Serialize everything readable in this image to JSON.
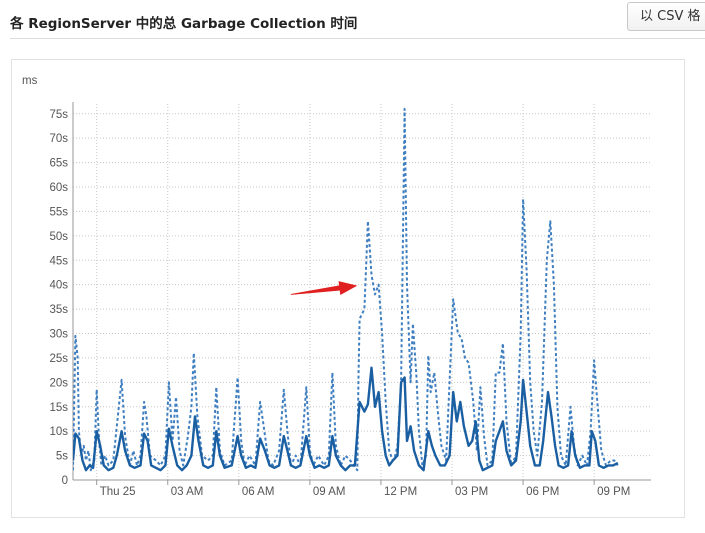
{
  "header": {
    "title": "各 RegionServer 中的总 Garbage Collection 时间",
    "csv_button": "以 CSV 格"
  },
  "chart_data": {
    "type": "line",
    "title": "各 RegionServer 中的总 Garbage Collection 时间",
    "ylabel": "ms",
    "y_unit_suffix": "s",
    "ylim": [
      0,
      77
    ],
    "yticks": [
      0,
      5,
      10,
      15,
      20,
      25,
      30,
      35,
      40,
      45,
      50,
      55,
      60,
      65,
      70,
      75
    ],
    "ytick_labels": [
      "0",
      "5s",
      "10s",
      "15s",
      "20s",
      "25s",
      "30s",
      "35s",
      "40s",
      "45s",
      "50s",
      "55s",
      "60s",
      "65s",
      "70s",
      "75s"
    ],
    "xlim": [
      -1.0,
      23.4
    ],
    "xtick_labels": [
      {
        "x": 0,
        "label": "Thu 25"
      },
      {
        "x": 3,
        "label": "03 AM"
      },
      {
        "x": 6,
        "label": "06 AM"
      },
      {
        "x": 9,
        "label": "09 AM"
      },
      {
        "x": 12,
        "label": "12 PM"
      },
      {
        "x": 15,
        "label": "03 PM"
      },
      {
        "x": 18,
        "label": "06 PM"
      },
      {
        "x": 21,
        "label": "09 PM"
      }
    ],
    "grid": true,
    "colors": {
      "line": "#1b5fa3",
      "dotted": "#3f7fc0",
      "grid": "#c7c7c7",
      "axis": "#999999",
      "arrow": "#e02020"
    },
    "series": [
      {
        "style": "dashed",
        "points": [
          [
            -1.0,
            2
          ],
          [
            -0.9,
            29.5
          ],
          [
            -0.8,
            25
          ],
          [
            -0.75,
            10
          ],
          [
            -0.65,
            5
          ],
          [
            -0.55,
            7
          ],
          [
            -0.45,
            4
          ],
          [
            -0.35,
            6
          ],
          [
            -0.25,
            2
          ],
          [
            -0.1,
            4
          ],
          [
            0.0,
            18.5
          ],
          [
            0.1,
            8
          ],
          [
            0.2,
            3
          ],
          [
            0.35,
            5
          ],
          [
            0.5,
            3
          ],
          [
            0.7,
            4
          ],
          [
            0.85,
            11
          ],
          [
            1.05,
            20.5
          ],
          [
            1.2,
            9
          ],
          [
            1.4,
            3
          ],
          [
            1.55,
            6
          ],
          [
            1.7,
            3
          ],
          [
            1.85,
            5
          ],
          [
            2.0,
            16
          ],
          [
            2.1,
            13
          ],
          [
            2.25,
            5
          ],
          [
            2.5,
            4
          ],
          [
            2.7,
            3
          ],
          [
            2.9,
            5
          ],
          [
            3.05,
            20
          ],
          [
            3.2,
            8
          ],
          [
            3.35,
            17
          ],
          [
            3.5,
            6
          ],
          [
            3.65,
            3
          ],
          [
            3.85,
            9
          ],
          [
            4.0,
            15
          ],
          [
            4.1,
            26
          ],
          [
            4.25,
            13
          ],
          [
            4.45,
            5
          ],
          [
            4.7,
            4
          ],
          [
            4.9,
            5
          ],
          [
            5.05,
            19
          ],
          [
            5.2,
            6
          ],
          [
            5.4,
            3
          ],
          [
            5.7,
            4
          ],
          [
            5.95,
            21
          ],
          [
            6.1,
            8
          ],
          [
            6.25,
            3
          ],
          [
            6.45,
            5
          ],
          [
            6.7,
            3
          ],
          [
            6.9,
            16
          ],
          [
            7.05,
            11
          ],
          [
            7.25,
            4
          ],
          [
            7.45,
            3
          ],
          [
            7.7,
            6
          ],
          [
            7.9,
            18.5
          ],
          [
            8.05,
            10
          ],
          [
            8.2,
            3
          ],
          [
            8.4,
            5
          ],
          [
            8.6,
            3
          ],
          [
            8.85,
            19
          ],
          [
            9.0,
            6
          ],
          [
            9.15,
            3
          ],
          [
            9.35,
            5
          ],
          [
            9.6,
            3
          ],
          [
            9.8,
            5
          ],
          [
            9.95,
            22
          ],
          [
            10.1,
            7
          ],
          [
            10.3,
            3
          ],
          [
            10.5,
            5
          ],
          [
            10.7,
            4
          ],
          [
            10.85,
            3
          ],
          [
            11.0,
            2
          ],
          [
            11.05,
            20
          ],
          [
            11.1,
            33
          ],
          [
            11.3,
            35
          ],
          [
            11.45,
            53
          ],
          [
            11.6,
            42
          ],
          [
            11.75,
            38
          ],
          [
            11.9,
            40
          ],
          [
            12.05,
            30
          ],
          [
            12.2,
            16
          ],
          [
            12.35,
            6
          ],
          [
            12.5,
            4
          ],
          [
            12.6,
            5
          ],
          [
            12.7,
            7
          ],
          [
            12.85,
            20
          ],
          [
            13.0,
            76
          ],
          [
            13.1,
            40
          ],
          [
            13.25,
            20
          ],
          [
            13.35,
            32
          ],
          [
            13.5,
            21
          ],
          [
            13.6,
            10
          ],
          [
            13.75,
            3
          ],
          [
            13.9,
            5
          ],
          [
            14.0,
            25.5
          ],
          [
            14.1,
            18
          ],
          [
            14.25,
            22
          ],
          [
            14.4,
            14
          ],
          [
            14.55,
            7
          ],
          [
            14.75,
            4
          ],
          [
            15.05,
            37
          ],
          [
            15.25,
            30
          ],
          [
            15.4,
            29
          ],
          [
            15.55,
            25
          ],
          [
            15.7,
            24
          ],
          [
            15.9,
            16
          ],
          [
            16.05,
            6
          ],
          [
            16.2,
            19
          ],
          [
            16.35,
            9
          ],
          [
            16.5,
            3
          ],
          [
            16.7,
            4
          ],
          [
            16.85,
            22
          ],
          [
            17.0,
            22
          ],
          [
            17.15,
            28
          ],
          [
            17.3,
            12
          ],
          [
            17.5,
            3
          ],
          [
            17.7,
            5
          ],
          [
            17.9,
            30
          ],
          [
            18.0,
            57.5
          ],
          [
            18.15,
            43
          ],
          [
            18.3,
            20
          ],
          [
            18.45,
            10
          ],
          [
            18.6,
            5
          ],
          [
            18.8,
            16
          ],
          [
            19.0,
            45
          ],
          [
            19.15,
            53
          ],
          [
            19.3,
            40
          ],
          [
            19.45,
            15
          ],
          [
            19.6,
            5
          ],
          [
            19.8,
            3
          ],
          [
            20.0,
            15
          ],
          [
            20.15,
            7
          ],
          [
            20.3,
            3
          ],
          [
            20.5,
            5
          ],
          [
            20.7,
            3
          ],
          [
            20.85,
            10
          ],
          [
            21.0,
            24.5
          ],
          [
            21.15,
            15
          ],
          [
            21.3,
            6
          ],
          [
            21.5,
            3
          ],
          [
            21.7,
            4
          ],
          [
            21.85,
            4
          ],
          [
            22.0,
            3
          ]
        ]
      },
      {
        "style": "solid",
        "points": [
          [
            -1.0,
            4
          ],
          [
            -0.9,
            9.5
          ],
          [
            -0.75,
            8.5
          ],
          [
            -0.6,
            4
          ],
          [
            -0.45,
            2
          ],
          [
            -0.3,
            3
          ],
          [
            -0.15,
            2.5
          ],
          [
            0.0,
            10
          ],
          [
            0.15,
            7
          ],
          [
            0.3,
            3
          ],
          [
            0.5,
            2
          ],
          [
            0.7,
            2.5
          ],
          [
            0.85,
            5
          ],
          [
            1.05,
            10
          ],
          [
            1.2,
            6
          ],
          [
            1.4,
            3
          ],
          [
            1.6,
            2.5
          ],
          [
            1.85,
            3
          ],
          [
            2.0,
            9.5
          ],
          [
            2.15,
            8
          ],
          [
            2.3,
            3
          ],
          [
            2.5,
            2.5
          ],
          [
            2.7,
            2
          ],
          [
            2.9,
            3
          ],
          [
            3.05,
            10.5
          ],
          [
            3.2,
            7
          ],
          [
            3.4,
            3
          ],
          [
            3.6,
            2
          ],
          [
            3.8,
            3
          ],
          [
            4.0,
            5
          ],
          [
            4.15,
            13
          ],
          [
            4.3,
            8
          ],
          [
            4.5,
            3
          ],
          [
            4.7,
            2.5
          ],
          [
            4.9,
            3
          ],
          [
            5.05,
            10
          ],
          [
            5.2,
            5
          ],
          [
            5.4,
            2.5
          ],
          [
            5.7,
            3
          ],
          [
            5.95,
            9
          ],
          [
            6.1,
            5
          ],
          [
            6.3,
            2.5
          ],
          [
            6.5,
            3
          ],
          [
            6.7,
            2.5
          ],
          [
            6.9,
            8.5
          ],
          [
            7.1,
            6
          ],
          [
            7.3,
            3
          ],
          [
            7.5,
            2.5
          ],
          [
            7.7,
            3
          ],
          [
            7.9,
            9
          ],
          [
            8.05,
            6
          ],
          [
            8.2,
            3
          ],
          [
            8.4,
            2.5
          ],
          [
            8.6,
            3
          ],
          [
            8.85,
            9
          ],
          [
            9.0,
            5
          ],
          [
            9.2,
            2.5
          ],
          [
            9.4,
            3
          ],
          [
            9.6,
            2.5
          ],
          [
            9.8,
            3
          ],
          [
            9.95,
            9
          ],
          [
            10.1,
            5
          ],
          [
            10.3,
            3
          ],
          [
            10.5,
            2
          ],
          [
            10.7,
            3
          ],
          [
            10.9,
            3
          ],
          [
            11.1,
            16
          ],
          [
            11.3,
            14
          ],
          [
            11.45,
            15.5
          ],
          [
            11.6,
            23
          ],
          [
            11.75,
            15
          ],
          [
            11.9,
            18
          ],
          [
            12.05,
            10
          ],
          [
            12.2,
            5
          ],
          [
            12.35,
            3
          ],
          [
            12.5,
            4
          ],
          [
            12.7,
            5
          ],
          [
            12.85,
            20
          ],
          [
            13.0,
            21
          ],
          [
            13.1,
            8
          ],
          [
            13.25,
            11
          ],
          [
            13.4,
            6
          ],
          [
            13.6,
            3
          ],
          [
            13.8,
            2
          ],
          [
            14.0,
            10
          ],
          [
            14.15,
            7
          ],
          [
            14.3,
            5
          ],
          [
            14.5,
            3
          ],
          [
            14.7,
            3
          ],
          [
            14.9,
            5
          ],
          [
            15.05,
            18
          ],
          [
            15.2,
            12
          ],
          [
            15.35,
            16
          ],
          [
            15.5,
            11
          ],
          [
            15.7,
            7
          ],
          [
            15.85,
            8
          ],
          [
            16.0,
            12
          ],
          [
            16.15,
            4
          ],
          [
            16.3,
            2
          ],
          [
            16.5,
            2.5
          ],
          [
            16.7,
            3
          ],
          [
            16.85,
            8
          ],
          [
            17.0,
            10
          ],
          [
            17.15,
            12
          ],
          [
            17.3,
            6
          ],
          [
            17.5,
            3
          ],
          [
            17.7,
            4
          ],
          [
            17.9,
            12
          ],
          [
            18.0,
            20.5
          ],
          [
            18.15,
            14
          ],
          [
            18.3,
            7
          ],
          [
            18.5,
            3
          ],
          [
            18.7,
            3
          ],
          [
            18.85,
            8
          ],
          [
            19.05,
            18
          ],
          [
            19.2,
            13
          ],
          [
            19.35,
            7
          ],
          [
            19.5,
            3
          ],
          [
            19.7,
            2.5
          ],
          [
            19.9,
            3
          ],
          [
            20.05,
            10
          ],
          [
            20.2,
            5
          ],
          [
            20.4,
            2.5
          ],
          [
            20.6,
            3
          ],
          [
            20.8,
            3
          ],
          [
            20.9,
            10
          ],
          [
            21.05,
            8
          ],
          [
            21.2,
            3
          ],
          [
            21.4,
            2.5
          ],
          [
            21.6,
            3
          ],
          [
            21.8,
            3
          ],
          [
            22.0,
            3.5
          ]
        ]
      }
    ],
    "annotations": [
      {
        "type": "arrow",
        "from": [
          8.2,
          38
        ],
        "to": [
          11.0,
          39.8
        ]
      }
    ]
  }
}
